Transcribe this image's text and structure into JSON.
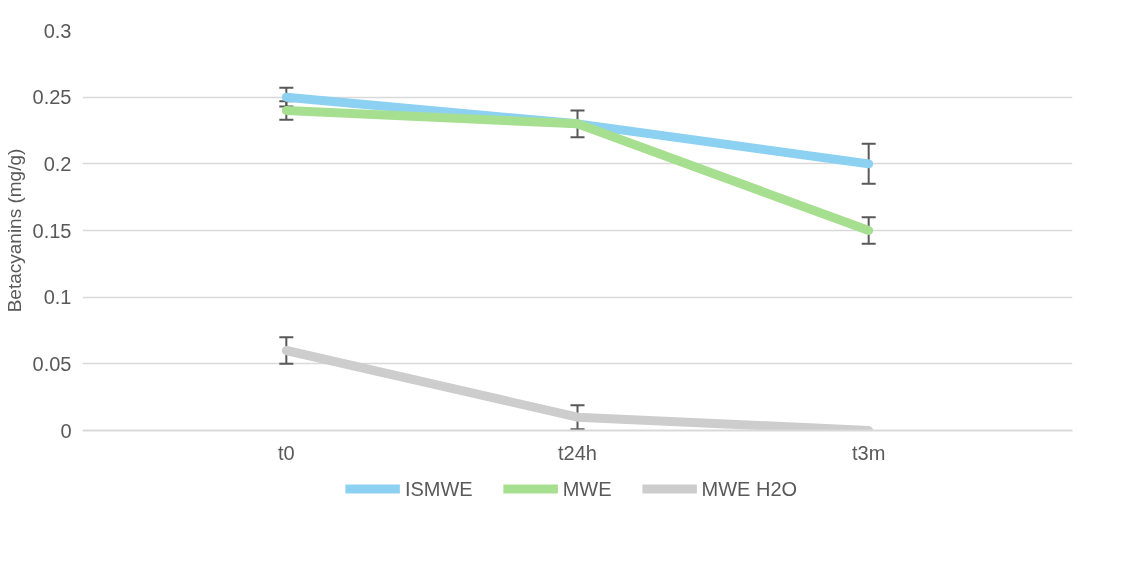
{
  "chart_data": {
    "type": "line",
    "ylabel": "Betacyanins (mg/g)",
    "categories": [
      "t0",
      "t24h",
      "t3m"
    ],
    "series": [
      {
        "name": "ISMWE",
        "color": "#8dd1f2",
        "values": [
          0.25,
          0.23,
          0.2
        ],
        "errors": [
          0.007,
          null,
          0.015
        ]
      },
      {
        "name": "MWE",
        "color": "#a6df8f",
        "values": [
          0.24,
          0.23,
          0.15
        ],
        "errors": [
          0.007,
          0.01,
          0.01
        ]
      },
      {
        "name": "MWE H2O",
        "color": "#cdcdcd",
        "values": [
          0.06,
          0.01,
          0
        ],
        "errors": [
          0.01,
          0.009,
          null
        ]
      }
    ],
    "ylim": [
      0,
      0.3
    ],
    "yticks": [
      0,
      0.05,
      0.1,
      0.15,
      0.2,
      0.25,
      0.3
    ],
    "grid": "y",
    "legend": "bottom",
    "marker": "none",
    "line_style": "solid"
  }
}
